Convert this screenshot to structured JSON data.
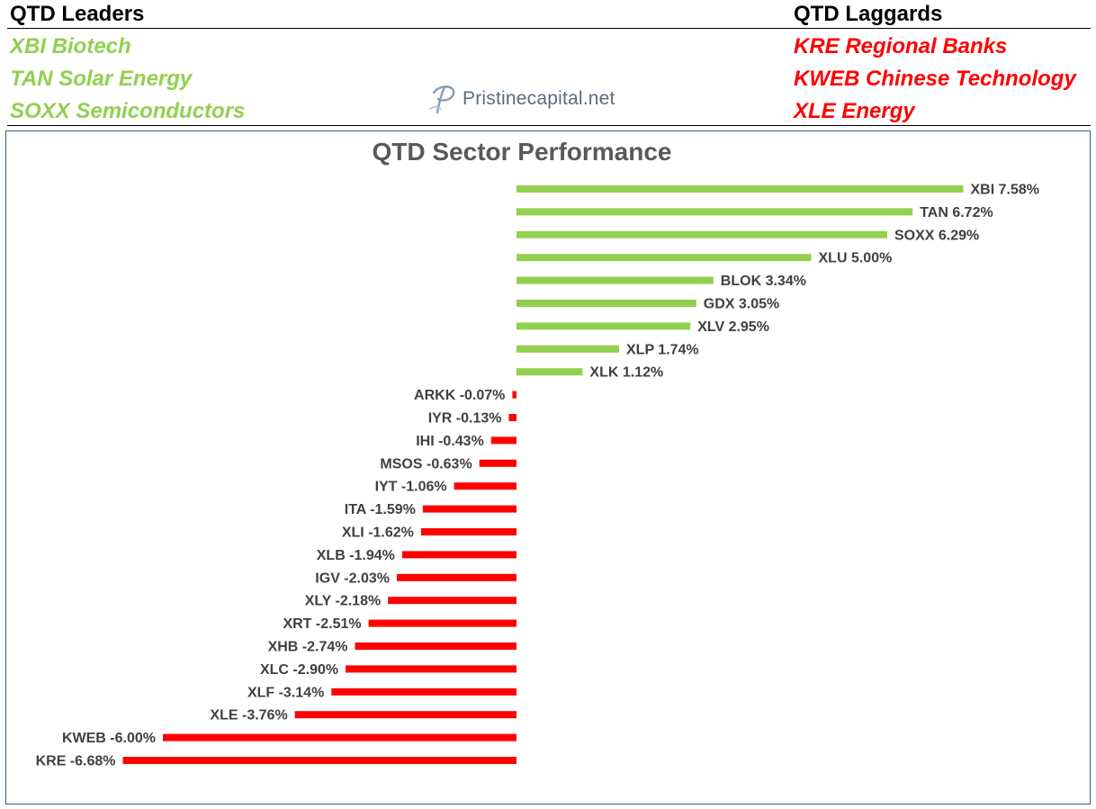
{
  "header": {
    "leaders_title": "QTD Leaders",
    "laggards_title": "QTD Laggards",
    "leaders": [
      "XBI Biotech",
      "TAN Solar Energy",
      "SOXX Semiconductors"
    ],
    "laggards": [
      "KRE Regional Banks",
      "KWEB Chinese Technology",
      "XLE Energy"
    ],
    "brand": "Pristinecapital.net"
  },
  "colors": {
    "positive": "#92d050",
    "negative": "#ff0000",
    "frame": "#2f5f8f",
    "title": "#595959",
    "label": "#404040"
  },
  "chart_data": {
    "type": "bar",
    "orientation": "horizontal",
    "title": "QTD Sector Performance",
    "unit": "%",
    "xlim": [
      -7,
      8
    ],
    "grid": false,
    "legend": "none",
    "categories": [
      "XBI",
      "TAN",
      "SOXX",
      "XLU",
      "BLOK",
      "GDX",
      "XLV",
      "XLP",
      "XLK",
      "ARKK",
      "IYR",
      "IHI",
      "MSOS",
      "IYT",
      "ITA",
      "XLI",
      "XLB",
      "IGV",
      "XLY",
      "XRT",
      "XHB",
      "XLC",
      "XLF",
      "XLE",
      "KWEB",
      "KRE"
    ],
    "values": [
      7.58,
      6.72,
      6.29,
      5.0,
      3.34,
      3.05,
      2.95,
      1.74,
      1.12,
      -0.07,
      -0.13,
      -0.43,
      -0.63,
      -1.06,
      -1.59,
      -1.62,
      -1.94,
      -2.03,
      -2.18,
      -2.51,
      -2.74,
      -2.9,
      -3.14,
      -3.76,
      -6.0,
      -6.68
    ],
    "labels": [
      "XBI 7.58%",
      "TAN 6.72%",
      "SOXX 6.29%",
      "XLU 5.00%",
      "BLOK 3.34%",
      "GDX 3.05%",
      "XLV 2.95%",
      "XLP 1.74%",
      "XLK 1.12%",
      "ARKK -0.07%",
      "IYR -0.13%",
      "IHI -0.43%",
      "MSOS -0.63%",
      "IYT -1.06%",
      "ITA -1.59%",
      "XLI -1.62%",
      "XLB -1.94%",
      "IGV -2.03%",
      "XLY -2.18%",
      "XRT -2.51%",
      "XHB -2.74%",
      "XLC -2.90%",
      "XLF -3.14%",
      "XLE -3.76%",
      "KWEB -6.00%",
      "KRE -6.68%"
    ]
  }
}
